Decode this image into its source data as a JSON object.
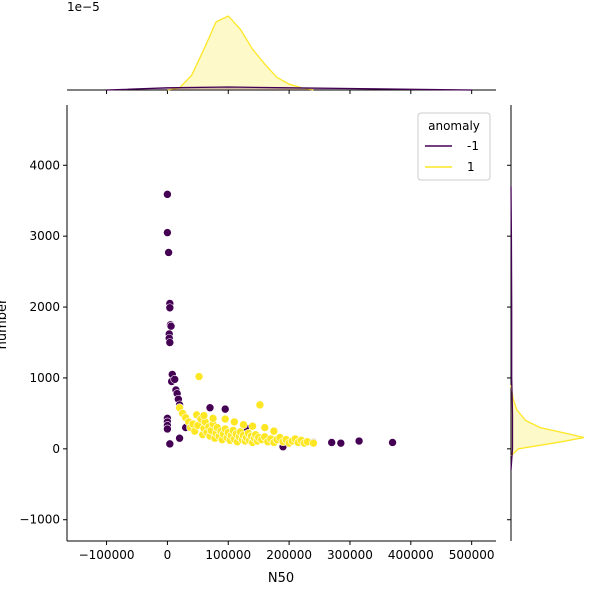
{
  "chart_data": {
    "type": "scatter",
    "xlabel": "N50",
    "ylabel": "number",
    "xlim": [
      -165000,
      540000
    ],
    "ylim": [
      -1300,
      4850
    ],
    "xticks": [
      -100000,
      0,
      100000,
      200000,
      300000,
      400000,
      500000
    ],
    "xtick_labels": [
      "−100000",
      "0",
      "100000",
      "200000",
      "300000",
      "400000",
      "500000"
    ],
    "yticks": [
      -1000,
      0,
      1000,
      2000,
      3000,
      4000
    ],
    "ytick_labels": [
      "−1000",
      "0",
      "1000",
      "2000",
      "3000",
      "4000"
    ],
    "top_axis_offset_label": "1e−5",
    "legend": {
      "title": "anomaly",
      "placement": "top-right",
      "entries": [
        {
          "label": "-1",
          "color": "#440154"
        },
        {
          "label": "1",
          "color": "#fde725"
        }
      ]
    },
    "series": [
      {
        "name": "-1",
        "color": "#440154",
        "points": [
          [
            0,
            3590
          ],
          [
            0,
            3050
          ],
          [
            2000,
            2770
          ],
          [
            4000,
            2050
          ],
          [
            4000,
            1990
          ],
          [
            5000,
            1750
          ],
          [
            6000,
            1730
          ],
          [
            3000,
            1620
          ],
          [
            3000,
            1560
          ],
          [
            4000,
            1500
          ],
          [
            8000,
            1050
          ],
          [
            7000,
            950
          ],
          [
            12000,
            980
          ],
          [
            14000,
            830
          ],
          [
            16000,
            780
          ],
          [
            18000,
            700
          ],
          [
            20000,
            620
          ],
          [
            0,
            430
          ],
          [
            0,
            380
          ],
          [
            0,
            330
          ],
          [
            0,
            280
          ],
          [
            4000,
            70
          ],
          [
            20000,
            150
          ],
          [
            30000,
            300
          ],
          [
            95000,
            560
          ],
          [
            70000,
            580
          ],
          [
            130000,
            290
          ],
          [
            190000,
            30
          ],
          [
            240000,
            90
          ],
          [
            270000,
            90
          ],
          [
            285000,
            80
          ],
          [
            315000,
            110
          ],
          [
            370000,
            90
          ]
        ]
      },
      {
        "name": "1",
        "color": "#fde725",
        "points": [
          [
            52000,
            1020
          ],
          [
            152000,
            620
          ],
          [
            20000,
            580
          ],
          [
            25000,
            500
          ],
          [
            30000,
            440
          ],
          [
            35000,
            380
          ],
          [
            38000,
            300
          ],
          [
            42000,
            350
          ],
          [
            45000,
            250
          ],
          [
            48000,
            480
          ],
          [
            50000,
            330
          ],
          [
            55000,
            420
          ],
          [
            58000,
            200
          ],
          [
            60000,
            290
          ],
          [
            62000,
            380
          ],
          [
            65000,
            230
          ],
          [
            68000,
            310
          ],
          [
            70000,
            180
          ],
          [
            72000,
            260
          ],
          [
            75000,
            350
          ],
          [
            78000,
            150
          ],
          [
            80000,
            220
          ],
          [
            82000,
            300
          ],
          [
            85000,
            180
          ],
          [
            88000,
            250
          ],
          [
            90000,
            130
          ],
          [
            92000,
            210
          ],
          [
            95000,
            280
          ],
          [
            98000,
            160
          ],
          [
            100000,
            230
          ],
          [
            103000,
            120
          ],
          [
            105000,
            190
          ],
          [
            108000,
            260
          ],
          [
            110000,
            140
          ],
          [
            113000,
            210
          ],
          [
            115000,
            100
          ],
          [
            118000,
            170
          ],
          [
            120000,
            240
          ],
          [
            123000,
            130
          ],
          [
            125000,
            190
          ],
          [
            128000,
            110
          ],
          [
            130000,
            160
          ],
          [
            133000,
            220
          ],
          [
            135000,
            120
          ],
          [
            138000,
            180
          ],
          [
            140000,
            90
          ],
          [
            143000,
            150
          ],
          [
            145000,
            200
          ],
          [
            148000,
            110
          ],
          [
            150000,
            160
          ],
          [
            155000,
            130
          ],
          [
            160000,
            170
          ],
          [
            165000,
            100
          ],
          [
            170000,
            140
          ],
          [
            175000,
            90
          ],
          [
            180000,
            130
          ],
          [
            185000,
            160
          ],
          [
            190000,
            100
          ],
          [
            195000,
            130
          ],
          [
            200000,
            80
          ],
          [
            205000,
            110
          ],
          [
            210000,
            140
          ],
          [
            215000,
            90
          ],
          [
            220000,
            120
          ],
          [
            225000,
            80
          ],
          [
            230000,
            100
          ],
          [
            240000,
            80
          ],
          [
            60000,
            470
          ],
          [
            75000,
            430
          ],
          [
            95000,
            420
          ],
          [
            110000,
            380
          ],
          [
            125000,
            340
          ],
          [
            140000,
            320
          ],
          [
            160000,
            300
          ],
          [
            175000,
            250
          ]
        ]
      }
    ],
    "marginal_top": {
      "series": [
        {
          "name": "1",
          "color": "#fde725",
          "x": [
            0,
            20000,
            40000,
            60000,
            80000,
            100000,
            120000,
            140000,
            160000,
            180000,
            200000,
            220000,
            240000
          ],
          "y": [
            0.0,
            0.03,
            0.2,
            0.55,
            0.92,
            1.0,
            0.82,
            0.55,
            0.35,
            0.17,
            0.08,
            0.03,
            0.0
          ]
        },
        {
          "name": "-1",
          "color": "#440154",
          "x": [
            -100000,
            0,
            100000,
            200000,
            300000,
            400000,
            500000
          ],
          "y": [
            0.0,
            0.03,
            0.04,
            0.03,
            0.02,
            0.01,
            0.0
          ]
        }
      ]
    },
    "marginal_right": {
      "series": [
        {
          "name": "1",
          "color": "#fde725",
          "y": [
            -100,
            0,
            100,
            160,
            220,
            300,
            400,
            550,
            700,
            900
          ],
          "x": [
            0.0,
            0.1,
            0.7,
            1.0,
            0.75,
            0.4,
            0.2,
            0.08,
            0.03,
            0.0
          ]
        },
        {
          "name": "-1",
          "color": "#440154",
          "y": [
            -300,
            0,
            500,
            1000,
            2000,
            3000,
            3700
          ],
          "x": [
            0.0,
            0.02,
            0.02,
            0.01,
            0.01,
            0.005,
            0.0
          ]
        }
      ]
    }
  }
}
